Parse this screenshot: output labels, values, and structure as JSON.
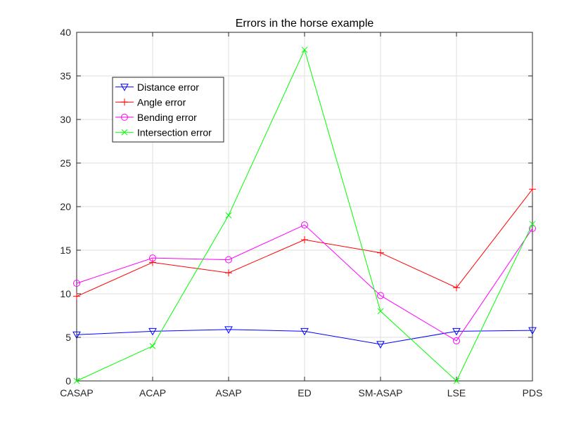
{
  "chart_data": {
    "type": "line",
    "title": "Errors in the horse example",
    "xlabel": "",
    "ylabel": "",
    "categories": [
      "CASAP",
      "ACAP",
      "ASAP",
      "ED",
      "SM-ASAP",
      "LSE",
      "PDS"
    ],
    "ylim": [
      0,
      40
    ],
    "yticks": [
      0,
      5,
      10,
      15,
      20,
      25,
      30,
      35,
      40
    ],
    "grid": true,
    "legend_position": "top-left",
    "series": [
      {
        "name": "Distance error",
        "color": "#0000ff",
        "marker": "triangle-down",
        "values": [
          5.3,
          5.7,
          5.9,
          5.7,
          4.2,
          5.7,
          5.8
        ]
      },
      {
        "name": "Angle error",
        "color": "#ff0000",
        "marker": "plus",
        "values": [
          9.7,
          13.6,
          12.4,
          16.2,
          14.7,
          10.7,
          22.0
        ]
      },
      {
        "name": "Bending error",
        "color": "#ff00ff",
        "marker": "circle",
        "values": [
          11.2,
          14.1,
          13.9,
          17.9,
          9.8,
          4.6,
          17.5
        ]
      },
      {
        "name": "Intersection error",
        "color": "#00ff00",
        "marker": "x",
        "values": [
          0,
          4,
          19,
          38,
          8,
          0,
          18
        ]
      }
    ]
  }
}
